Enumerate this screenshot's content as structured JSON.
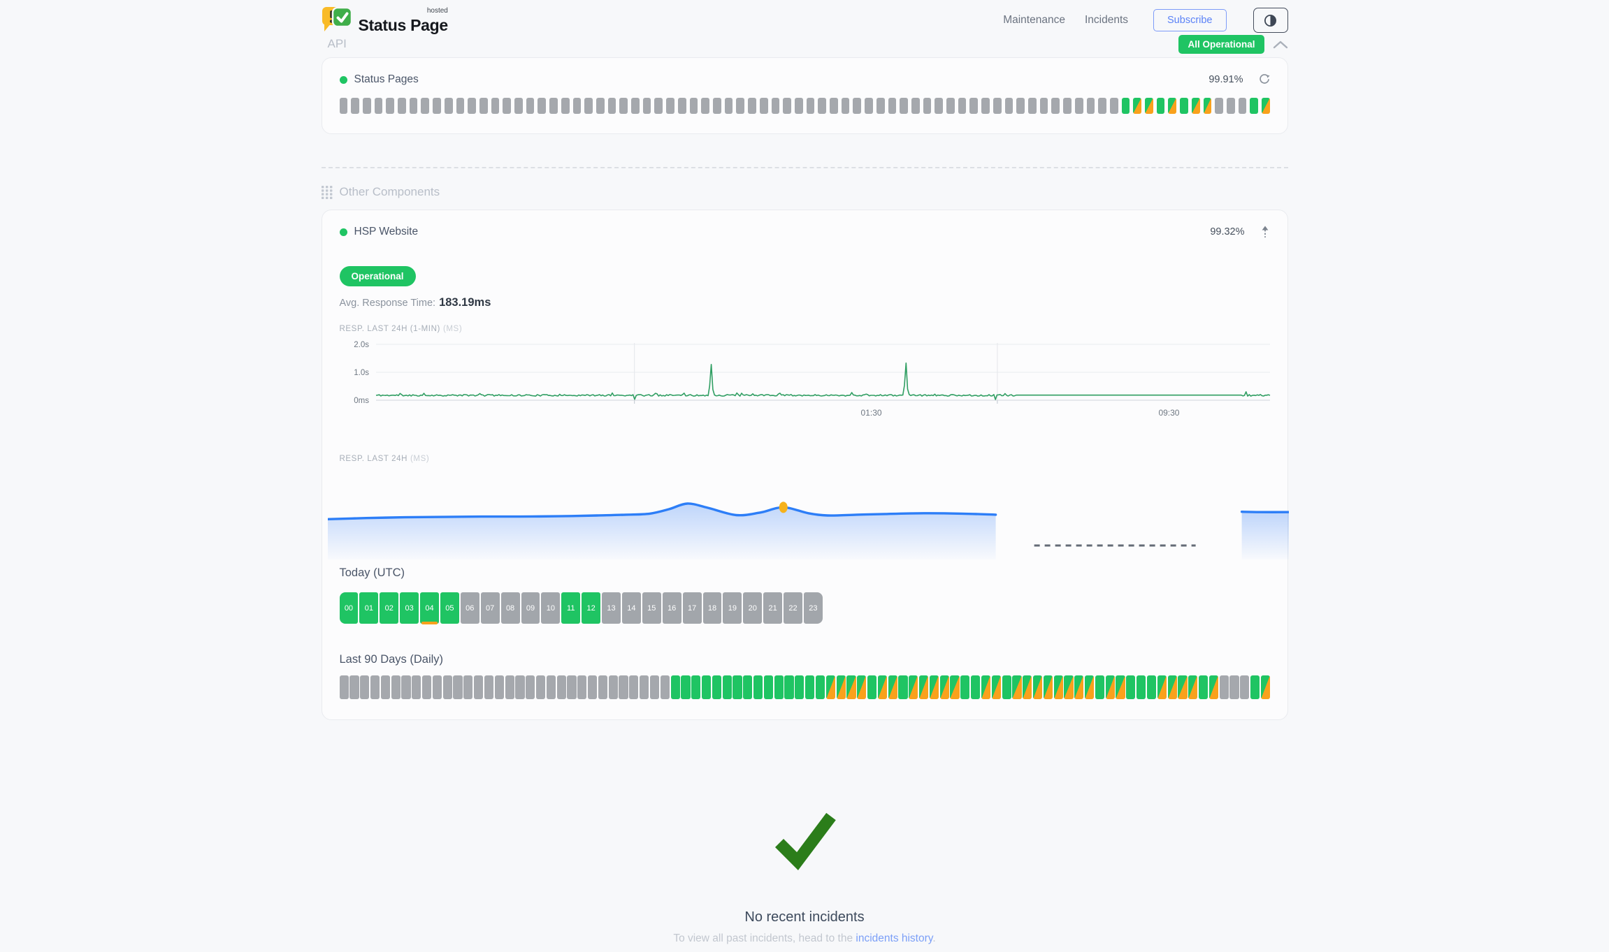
{
  "header": {
    "brand": {
      "name": "Status Page",
      "superscript": "hosted"
    },
    "nav": [
      {
        "label": "Maintenance"
      },
      {
        "label": "Incidents"
      }
    ],
    "subscribe_label": "Subscribe",
    "overall_status": "All Operational"
  },
  "sections": {
    "api": {
      "title": "API",
      "component": {
        "name": "Status Pages",
        "uptime_pct": "99.91%",
        "bars_pattern": "nnnnnnnnnnnnnnnnnnnnnnnnnnnnnnnnnnnnnnnnnnnnnnnnnnnnnnnnnnnnnnnnnnnuddududdnnnud",
        "bar_legend": {
          "u": "operational",
          "d": "degraded",
          "n": "no-data"
        }
      }
    },
    "other": {
      "title": "Other Components",
      "component": {
        "name": "HSP Website",
        "uptime_pct": "99.32%",
        "status_badge": "Operational",
        "avg_response_label": "Avg. Response Time:",
        "avg_response_value": "183.19ms",
        "chart1_label": "RESP. LAST 24H (1-MIN)",
        "chart1_unit": "(MS)",
        "chart2_label": "RESP. LAST 24H",
        "chart2_unit": "(MS)",
        "today_title": "Today (UTC)",
        "today": {
          "hours": [
            "00",
            "01",
            "02",
            "03",
            "04",
            "05",
            "06",
            "07",
            "08",
            "09",
            "10",
            "11",
            "12",
            "13",
            "14",
            "15",
            "16",
            "17",
            "18",
            "19",
            "20",
            "21",
            "22",
            "23"
          ],
          "pattern": "uuuuuunnnnnuunnnnnnnnnnn",
          "degraded_marker_hours": [
            "04"
          ]
        },
        "last90_title": "Last 90 Days (Daily)",
        "last90_pattern": "nnnnnnnnnnnnnnnnnnnnnnnnnnnnnnnnuuuuuuuuuuuuuuuddddudduddddduudduddddddddudduuuddddudnnnud"
      }
    }
  },
  "footer": {
    "title": "No recent incidents",
    "subtitle_prefix": "To view all past incidents, head to the ",
    "link_text": "incidents history",
    "subtitle_suffix": "."
  },
  "colors": {
    "green": "#1fc463",
    "orange": "#f9a11c",
    "gray_bar": "#a5a8ad",
    "line_green": "#2f9e62",
    "line_blue": "#2d7ef7",
    "marker_orange": "#f6b21b",
    "check_green": "#2b7d1a",
    "link_blue": "#7b9ff7",
    "accent_blue": "#5b82f7"
  },
  "chart_data": [
    {
      "type": "line",
      "title": "RESP. LAST 24H (1-MIN)",
      "unit": "ms",
      "ylabel_ticks": [
        "2.0s",
        "1.0s",
        "0ms"
      ],
      "ylim_ms": [
        0,
        2000
      ],
      "xtick_labels": [
        {
          "label": "01:30",
          "f": 0.554
        },
        {
          "label": "09:30",
          "f": 0.887
        }
      ],
      "baseline_ms": 183,
      "noise_ms": [
        130,
        320
      ],
      "spikes": [
        {
          "f": 0.375,
          "ms": 1280
        },
        {
          "f": 0.592,
          "ms": 1330
        }
      ],
      "dips": [
        {
          "f": 0.289,
          "ms": 30
        },
        {
          "f": 0.693,
          "ms": 25
        }
      ],
      "flat_segment": {
        "f0": 0.716,
        "f1": 0.968,
        "ms": 183
      },
      "vgrid_f": [
        0.289,
        0.695
      ],
      "grid": true,
      "legend": "none"
    },
    {
      "type": "area",
      "title": "RESP. LAST 24H",
      "unit": "ms",
      "segments": [
        {
          "points": [
            [
              0,
              170
            ],
            [
              0.04,
              173
            ],
            [
              0.08,
              175
            ],
            [
              0.12,
              176
            ],
            [
              0.16,
              177
            ],
            [
              0.2,
              177
            ],
            [
              0.24,
              178
            ],
            [
              0.28,
              180
            ],
            [
              0.31,
              182
            ],
            [
              0.335,
              185
            ],
            [
              0.355,
              197
            ],
            [
              0.374,
              212
            ],
            [
              0.395,
              201
            ],
            [
              0.425,
              181
            ],
            [
              0.45,
              188
            ],
            [
              0.474,
              202
            ],
            [
              0.5,
              186
            ],
            [
              0.52,
              180
            ],
            [
              0.55,
              182
            ],
            [
              0.58,
              184
            ],
            [
              0.62,
              186
            ],
            [
              0.66,
              185
            ],
            [
              0.695,
              182
            ]
          ]
        },
        {
          "points": [
            [
              0.951,
              190
            ],
            [
              0.97,
              189
            ],
            [
              1.0,
              189
            ]
          ]
        }
      ],
      "gap_dashed": {
        "f0": 0.735,
        "f1": 0.903
      },
      "marker": {
        "f": 0.474,
        "ms": 202
      }
    }
  ]
}
